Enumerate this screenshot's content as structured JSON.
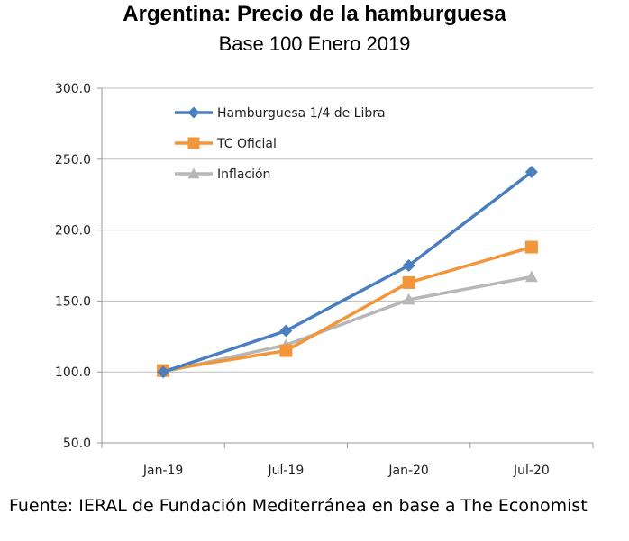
{
  "title": "Argentina: Precio de la hamburguesa",
  "subtitle": "Base 100 Enero 2019",
  "source": "Fuente: IERAL de Fundación Mediterránea en base a The Economist",
  "chart_data": {
    "type": "line",
    "title": "Argentina: Precio de la hamburguesa",
    "subtitle": "Base 100 Enero 2019",
    "categories": [
      "Jan-19",
      "Jul-19",
      "Jan-20",
      "Jul-20"
    ],
    "y_ticks": [
      "50.0",
      "100.0",
      "150.0",
      "200.0",
      "250.0",
      "300.0"
    ],
    "ylim": [
      50,
      300
    ],
    "grid": true,
    "legend_position": "top-left",
    "series": [
      {
        "name": "Hamburguesa 1/4 de Libra",
        "values": [
          100,
          129,
          175,
          241
        ],
        "color": "#4a7ebf",
        "marker": "diamond"
      },
      {
        "name": "TC Oficial",
        "values": [
          101,
          115,
          163,
          188
        ],
        "color": "#f39539",
        "marker": "square"
      },
      {
        "name": "Inflación",
        "values": [
          100,
          119,
          151,
          167
        ],
        "color": "#b7b7b7",
        "marker": "triangle"
      }
    ]
  }
}
